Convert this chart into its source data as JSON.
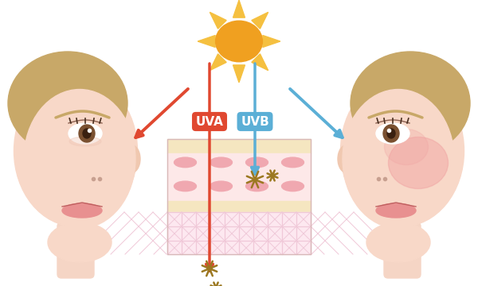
{
  "bg_color": "#ffffff",
  "uva_color": "#e04830",
  "uvb_color": "#5bafd6",
  "sun_body_color": "#f0a020",
  "sun_ray_color": "#f5c040",
  "face_skin_color": "#f8d8c8",
  "face_skin_color2": "#f5cdb8",
  "hair_color": "#c8a868",
  "eye_color": "#7a5030",
  "blush_color": "#f0a0a0",
  "lip_color": "#e89090",
  "skin_top_color": "#f5e6c0",
  "skin_cell_bg": "#fde8e8",
  "skin_cell_color": "#f0a8b0",
  "skin_mid_color": "#f5e6c0",
  "skin_bot_color": "#fde8f0",
  "skin_grid_color": "#f0c8d8",
  "spark_color": "#9b7820",
  "ear_color": "#f0c8b0",
  "neck_color": "#f5d5c5"
}
